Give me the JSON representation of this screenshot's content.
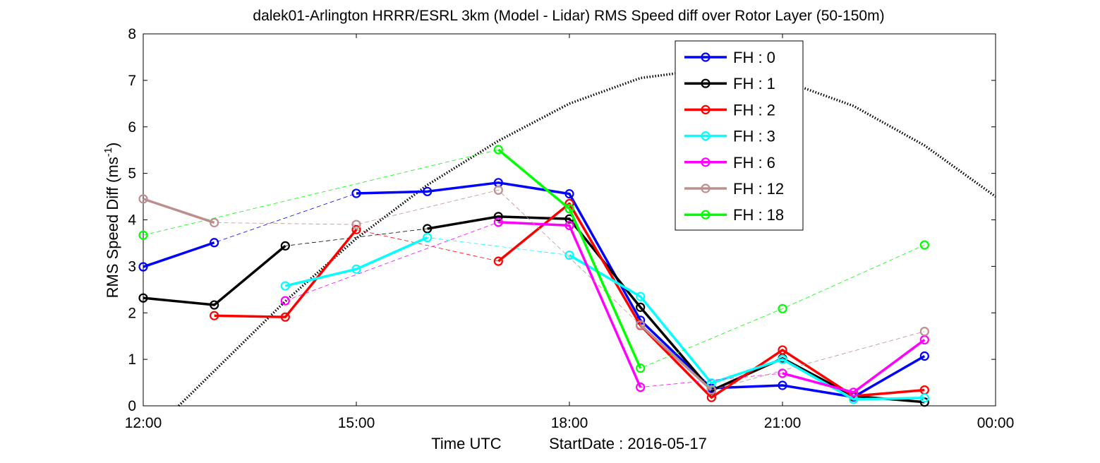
{
  "chart_data": {
    "type": "line",
    "title": "dalek01-Arlington HRRR/ESRL 3km (Model - Lidar) RMS Speed diff over Rotor Layer (50-150m)",
    "xlabel": "Time UTC",
    "xlabel_extra": "StartDate : 2016-05-17",
    "ylabel": "RMS Speed Diff (ms",
    "ylabel_sup": "-1",
    "ylabel_close": ")",
    "xlim": [
      12,
      24
    ],
    "ylim": [
      0,
      8
    ],
    "x_ticks": [
      12,
      15,
      18,
      21,
      24
    ],
    "x_tick_labels": [
      "12:00",
      "15:00",
      "18:00",
      "21:00",
      "00:00"
    ],
    "y_ticks": [
      0,
      1,
      2,
      3,
      4,
      5,
      6,
      7,
      8
    ],
    "y_tick_labels": [
      "0",
      "1",
      "2",
      "3",
      "4",
      "5",
      "6",
      "7",
      "8"
    ],
    "grid": false,
    "legend_position": "top-right",
    "series": [
      {
        "name": "FH : 0",
        "color": "#0000ff",
        "x": [
          12,
          13,
          15,
          16,
          17,
          18,
          19,
          20,
          21,
          22,
          23
        ],
        "y": [
          2.99,
          3.51,
          4.57,
          4.61,
          4.8,
          4.56,
          1.84,
          0.38,
          0.44,
          0.19,
          1.07
        ]
      },
      {
        "name": "FH : 1",
        "color": "#000000",
        "x": [
          12,
          13,
          14,
          16,
          17,
          18,
          19,
          20,
          21,
          22,
          23
        ],
        "y": [
          2.32,
          2.17,
          3.44,
          3.81,
          4.07,
          4.02,
          2.12,
          0.33,
          1.02,
          0.21,
          0.08
        ]
      },
      {
        "name": "FH : 2",
        "color": "#ff0000",
        "x": [
          13,
          14,
          15,
          17,
          18,
          19,
          20,
          21,
          22,
          23
        ],
        "y": [
          1.94,
          1.91,
          3.79,
          3.11,
          4.35,
          1.73,
          0.18,
          1.2,
          0.21,
          0.34
        ]
      },
      {
        "name": "FH : 3",
        "color": "#00ffff",
        "x": [
          14,
          15,
          16,
          18,
          19,
          20,
          21,
          22,
          23
        ],
        "y": [
          2.58,
          2.94,
          3.62,
          3.24,
          2.35,
          0.49,
          1.0,
          0.14,
          0.17
        ]
      },
      {
        "name": "FH : 6",
        "color": "#ff00ff",
        "x": [
          14,
          17,
          18,
          19,
          21,
          22,
          23
        ],
        "y": [
          2.26,
          3.95,
          3.88,
          0.4,
          0.7,
          0.29,
          1.42
        ]
      },
      {
        "name": "FH : 12",
        "color": "#bc8f8f",
        "x": [
          12,
          13,
          15,
          17,
          19,
          20,
          23
        ],
        "y": [
          4.45,
          3.94,
          3.9,
          4.64,
          1.74,
          0.34,
          1.6
        ]
      },
      {
        "name": "FH : 18",
        "color": "#00ff00",
        "x": [
          12,
          17,
          18,
          19,
          21,
          23
        ],
        "y": [
          3.67,
          5.51,
          4.24,
          0.81,
          2.09,
          3.46
        ]
      }
    ],
    "dotted_curve": {
      "color": "#000000",
      "x": [
        12.5,
        13.0,
        14.0,
        15.0,
        16.0,
        17.0,
        18.0,
        19.0,
        20.0,
        21.0,
        22.0,
        23.0,
        24.0
      ],
      "y": [
        0.0,
        0.75,
        2.25,
        3.6,
        4.75,
        5.7,
        6.5,
        7.05,
        7.25,
        7.0,
        6.45,
        5.6,
        4.5
      ]
    }
  }
}
